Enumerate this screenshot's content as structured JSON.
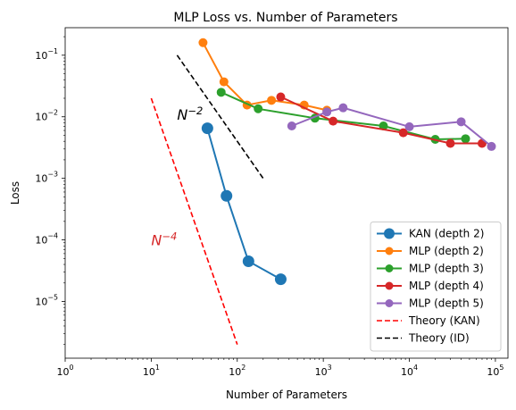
{
  "chart_data": {
    "type": "line",
    "title": "MLP Loss vs. Number of Parameters",
    "xlabel": "Number of Parameters",
    "ylabel": "Loss",
    "xscale": "log",
    "yscale": "log",
    "xlim": [
      1,
      140000
    ],
    "ylim": [
      1.2e-06,
      0.28
    ],
    "legend_position": "lower-right",
    "x_ticks": [
      {
        "value": 1,
        "base": "10",
        "exp": "0"
      },
      {
        "value": 10,
        "base": "10",
        "exp": "1"
      },
      {
        "value": 100,
        "base": "10",
        "exp": "2"
      },
      {
        "value": 1000,
        "base": "10",
        "exp": "3"
      },
      {
        "value": 10000,
        "base": "10",
        "exp": "4"
      },
      {
        "value": 100000,
        "base": "10",
        "exp": "5"
      }
    ],
    "y_ticks": [
      {
        "value": 1e-05,
        "base": "10",
        "exp": "−5"
      },
      {
        "value": 0.0001,
        "base": "10",
        "exp": "−4"
      },
      {
        "value": 0.001,
        "base": "10",
        "exp": "−3"
      },
      {
        "value": 0.01,
        "base": "10",
        "exp": "−2"
      },
      {
        "value": 0.1,
        "base": "10",
        "exp": "−1"
      }
    ],
    "series": [
      {
        "name": "KAN (depth 2)",
        "color": "#1f77b4",
        "style": "solid-marker-large",
        "x": [
          45,
          75,
          135,
          320
        ],
        "y": [
          0.0065,
          0.00052,
          4.5e-05,
          2.3e-05
        ]
      },
      {
        "name": "MLP (depth 2)",
        "color": "#ff7f0e",
        "style": "solid-marker",
        "x": [
          40,
          70,
          130,
          250,
          600,
          1100
        ],
        "y": [
          0.16,
          0.037,
          0.0155,
          0.0185,
          0.0155,
          0.0128
        ]
      },
      {
        "name": "MLP (depth 3)",
        "color": "#2ca02c",
        "style": "solid-marker",
        "x": [
          65,
          175,
          800,
          5000,
          20000,
          45000
        ],
        "y": [
          0.025,
          0.0135,
          0.0095,
          0.0071,
          0.0043,
          0.0044
        ]
      },
      {
        "name": "MLP (depth 4)",
        "color": "#d62728",
        "style": "solid-marker",
        "x": [
          320,
          1300,
          8500,
          30000,
          70000
        ],
        "y": [
          0.021,
          0.0085,
          0.0055,
          0.0037,
          0.0037
        ]
      },
      {
        "name": "MLP (depth 5)",
        "color": "#9467bd",
        "style": "solid-marker",
        "x": [
          430,
          1100,
          1700,
          10000,
          40000,
          90000
        ],
        "y": [
          0.0071,
          0.012,
          0.014,
          0.0069,
          0.0083,
          0.0033
        ]
      },
      {
        "name": "Theory (KAN)",
        "color": "#ff0000",
        "style": "dashed",
        "x": [
          10,
          100
        ],
        "y": [
          0.02,
          2e-06
        ]
      },
      {
        "name": "Theory (ID)",
        "color": "#000000",
        "style": "dashed",
        "x": [
          20,
          200
        ],
        "y": [
          0.1,
          0.001
        ]
      }
    ],
    "annotations": [
      {
        "base": "N",
        "exp": "−4",
        "x": 10,
        "y": 0.0001,
        "color": "#d62728"
      },
      {
        "base": "N",
        "exp": "−2",
        "x": 20,
        "y": 0.011,
        "color": "#000000"
      }
    ]
  }
}
